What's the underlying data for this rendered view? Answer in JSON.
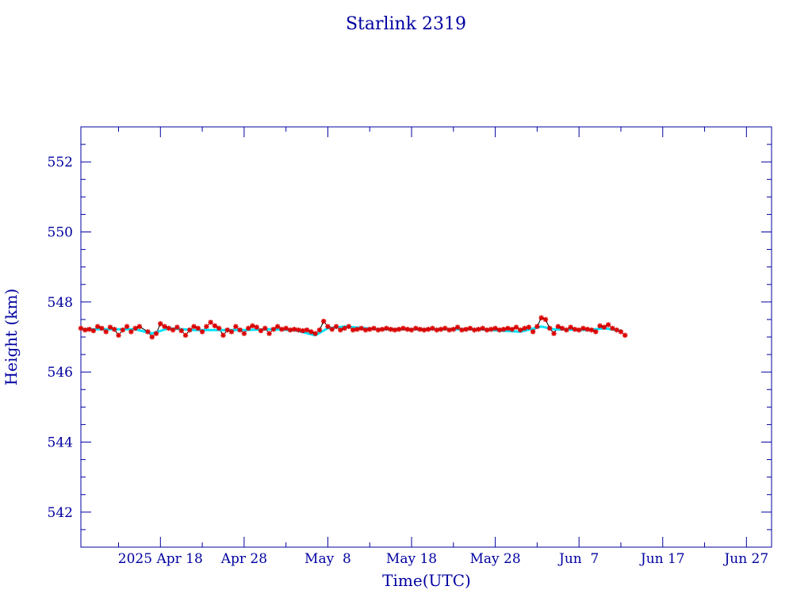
{
  "chart_data": {
    "type": "scatter",
    "title": "Starlink 2319",
    "xlabel": "Time(UTC)",
    "ylabel": "Height (km)",
    "xlim": [
      "2025-04-08T12:00",
      "2025-06-30T00:00"
    ],
    "ylim": [
      541,
      553
    ],
    "xticks": [
      {
        "label": "2025 Apr 18",
        "date": "2025-04-18"
      },
      {
        "label": "Apr 28",
        "date": "2025-04-28"
      },
      {
        "label": "May  8",
        "date": "2025-05-08"
      },
      {
        "label": "May 18",
        "date": "2025-05-18"
      },
      {
        "label": "May 28",
        "date": "2025-05-28"
      },
      {
        "label": "Jun  7",
        "date": "2025-06-07"
      },
      {
        "label": "Jun 17",
        "date": "2025-06-17"
      },
      {
        "label": "Jun 27",
        "date": "2025-06-27"
      }
    ],
    "yticks": [
      542,
      544,
      546,
      548,
      550,
      552
    ],
    "grid": false,
    "colors": {
      "axis": "#0000a0",
      "observed": "#dd0000",
      "smoothed": "#00e5ff",
      "connector": "#000000"
    },
    "series": [
      {
        "style": "red-star-markers",
        "points": [
          [
            "2025-04-08T12:00",
            547.25
          ],
          [
            "2025-04-09T00:00",
            547.2
          ],
          [
            "2025-04-09T12:00",
            547.22
          ],
          [
            "2025-04-10T00:00",
            547.18
          ],
          [
            "2025-04-10T12:00",
            547.3
          ],
          [
            "2025-04-11T00:00",
            547.25
          ],
          [
            "2025-04-11T12:00",
            547.15
          ],
          [
            "2025-04-12T00:00",
            547.28
          ],
          [
            "2025-04-12T12:00",
            547.22
          ],
          [
            "2025-04-13T00:00",
            547.05
          ],
          [
            "2025-04-13T12:00",
            547.2
          ],
          [
            "2025-04-14T00:00",
            547.3
          ],
          [
            "2025-04-14T12:00",
            547.15
          ],
          [
            "2025-04-15T00:00",
            547.25
          ],
          [
            "2025-04-15T12:00",
            547.3
          ],
          [
            "2025-04-16T12:00",
            547.15
          ],
          [
            "2025-04-17T00:00",
            547.0
          ],
          [
            "2025-04-17T12:00",
            547.1
          ],
          [
            "2025-04-18T00:00",
            547.38
          ],
          [
            "2025-04-18T12:00",
            547.3
          ],
          [
            "2025-04-19T00:00",
            547.25
          ],
          [
            "2025-04-19T12:00",
            547.2
          ],
          [
            "2025-04-20T00:00",
            547.28
          ],
          [
            "2025-04-20T12:00",
            547.18
          ],
          [
            "2025-04-21T00:00",
            547.05
          ],
          [
            "2025-04-21T12:00",
            547.2
          ],
          [
            "2025-04-22T00:00",
            547.3
          ],
          [
            "2025-04-22T12:00",
            547.25
          ],
          [
            "2025-04-23T00:00",
            547.15
          ],
          [
            "2025-04-23T12:00",
            547.3
          ],
          [
            "2025-04-24T00:00",
            547.42
          ],
          [
            "2025-04-24T12:00",
            547.32
          ],
          [
            "2025-04-25T00:00",
            547.25
          ],
          [
            "2025-04-25T12:00",
            547.05
          ],
          [
            "2025-04-26T00:00",
            547.2
          ],
          [
            "2025-04-26T12:00",
            547.15
          ],
          [
            "2025-04-27T00:00",
            547.3
          ],
          [
            "2025-04-27T12:00",
            547.2
          ],
          [
            "2025-04-28T00:00",
            547.1
          ],
          [
            "2025-04-28T12:00",
            547.25
          ],
          [
            "2025-04-29T00:00",
            547.32
          ],
          [
            "2025-04-29T12:00",
            547.28
          ],
          [
            "2025-04-30T00:00",
            547.18
          ],
          [
            "2025-04-30T12:00",
            547.25
          ],
          [
            "2025-05-01T00:00",
            547.1
          ],
          [
            "2025-05-01T12:00",
            547.22
          ],
          [
            "2025-05-02T00:00",
            547.3
          ],
          [
            "2025-05-02T12:00",
            547.22
          ],
          [
            "2025-05-03T00:00",
            547.25
          ],
          [
            "2025-05-03T12:00",
            547.2
          ],
          [
            "2025-05-04T00:00",
            547.22
          ],
          [
            "2025-05-04T12:00",
            547.2
          ],
          [
            "2025-05-05T00:00",
            547.18
          ],
          [
            "2025-05-05T12:00",
            547.2
          ],
          [
            "2025-05-06T00:00",
            547.15
          ],
          [
            "2025-05-06T12:00",
            547.1
          ],
          [
            "2025-05-07T00:00",
            547.2
          ],
          [
            "2025-05-07T12:00",
            547.45
          ],
          [
            "2025-05-08T00:00",
            547.3
          ],
          [
            "2025-05-08T12:00",
            547.22
          ],
          [
            "2025-05-09T00:00",
            547.3
          ],
          [
            "2025-05-09T12:00",
            547.2
          ],
          [
            "2025-05-10T00:00",
            547.25
          ],
          [
            "2025-05-10T12:00",
            547.3
          ],
          [
            "2025-05-11T00:00",
            547.2
          ],
          [
            "2025-05-11T12:00",
            547.22
          ],
          [
            "2025-05-12T00:00",
            547.25
          ],
          [
            "2025-05-12T12:00",
            547.2
          ],
          [
            "2025-05-13T00:00",
            547.22
          ],
          [
            "2025-05-13T12:00",
            547.25
          ],
          [
            "2025-05-14T00:00",
            547.2
          ],
          [
            "2025-05-14T12:00",
            547.22
          ],
          [
            "2025-05-15T00:00",
            547.25
          ],
          [
            "2025-05-15T12:00",
            547.22
          ],
          [
            "2025-05-16T00:00",
            547.2
          ],
          [
            "2025-05-16T12:00",
            547.22
          ],
          [
            "2025-05-17T00:00",
            547.25
          ],
          [
            "2025-05-17T12:00",
            547.22
          ],
          [
            "2025-05-18T00:00",
            547.2
          ],
          [
            "2025-05-18T12:00",
            547.25
          ],
          [
            "2025-05-19T00:00",
            547.22
          ],
          [
            "2025-05-19T12:00",
            547.2
          ],
          [
            "2025-05-20T00:00",
            547.22
          ],
          [
            "2025-05-20T12:00",
            547.25
          ],
          [
            "2025-05-21T00:00",
            547.2
          ],
          [
            "2025-05-21T12:00",
            547.22
          ],
          [
            "2025-05-22T00:00",
            547.25
          ],
          [
            "2025-05-22T12:00",
            547.2
          ],
          [
            "2025-05-23T00:00",
            547.22
          ],
          [
            "2025-05-23T12:00",
            547.28
          ],
          [
            "2025-05-24T00:00",
            547.2
          ],
          [
            "2025-05-24T12:00",
            547.22
          ],
          [
            "2025-05-25T00:00",
            547.25
          ],
          [
            "2025-05-25T12:00",
            547.2
          ],
          [
            "2025-05-26T00:00",
            547.22
          ],
          [
            "2025-05-26T12:00",
            547.25
          ],
          [
            "2025-05-27T00:00",
            547.2
          ],
          [
            "2025-05-27T12:00",
            547.22
          ],
          [
            "2025-05-28T00:00",
            547.25
          ],
          [
            "2025-05-28T12:00",
            547.2
          ],
          [
            "2025-05-29T00:00",
            547.22
          ],
          [
            "2025-05-29T12:00",
            547.25
          ],
          [
            "2025-05-30T00:00",
            547.22
          ],
          [
            "2025-05-30T12:00",
            547.28
          ],
          [
            "2025-05-31T00:00",
            547.2
          ],
          [
            "2025-05-31T12:00",
            547.25
          ],
          [
            "2025-06-01T00:00",
            547.28
          ],
          [
            "2025-06-01T12:00",
            547.15
          ],
          [
            "2025-06-02T00:00",
            547.3
          ],
          [
            "2025-06-02T12:00",
            547.55
          ],
          [
            "2025-06-03T00:00",
            547.5
          ],
          [
            "2025-06-03T12:00",
            547.25
          ],
          [
            "2025-06-04T00:00",
            547.1
          ],
          [
            "2025-06-04T12:00",
            547.3
          ],
          [
            "2025-06-05T00:00",
            547.25
          ],
          [
            "2025-06-05T12:00",
            547.2
          ],
          [
            "2025-06-06T00:00",
            547.28
          ],
          [
            "2025-06-06T12:00",
            547.22
          ],
          [
            "2025-06-07T00:00",
            547.2
          ],
          [
            "2025-06-07T12:00",
            547.25
          ],
          [
            "2025-06-08T00:00",
            547.22
          ],
          [
            "2025-06-08T12:00",
            547.2
          ],
          [
            "2025-06-09T00:00",
            547.15
          ],
          [
            "2025-06-09T12:00",
            547.32
          ],
          [
            "2025-06-10T00:00",
            547.28
          ],
          [
            "2025-06-10T12:00",
            547.35
          ],
          [
            "2025-06-11T00:00",
            547.25
          ],
          [
            "2025-06-11T12:00",
            547.2
          ],
          [
            "2025-06-12T00:00",
            547.15
          ],
          [
            "2025-06-12T12:00",
            547.05
          ]
        ]
      },
      {
        "style": "cyan-smoothed-line",
        "points": [
          [
            "2025-04-08T12:00",
            547.22
          ],
          [
            "2025-04-12T00:00",
            547.22
          ],
          [
            "2025-04-15T00:00",
            547.22
          ],
          [
            "2025-04-17T00:00",
            547.1
          ],
          [
            "2025-04-19T00:00",
            547.25
          ],
          [
            "2025-04-22T00:00",
            547.2
          ],
          [
            "2025-04-25T00:00",
            547.2
          ],
          [
            "2025-04-28T00:00",
            547.2
          ],
          [
            "2025-05-01T00:00",
            547.22
          ],
          [
            "2025-05-04T00:00",
            547.2
          ],
          [
            "2025-05-06T12:00",
            547.05
          ],
          [
            "2025-05-08T00:00",
            547.25
          ],
          [
            "2025-05-10T00:00",
            547.3
          ],
          [
            "2025-05-14T00:00",
            547.22
          ],
          [
            "2025-05-20T00:00",
            547.22
          ],
          [
            "2025-05-26T00:00",
            547.22
          ],
          [
            "2025-05-31T00:00",
            547.15
          ],
          [
            "2025-06-02T12:00",
            547.3
          ],
          [
            "2025-06-04T00:00",
            547.22
          ],
          [
            "2025-06-08T00:00",
            547.2
          ],
          [
            "2025-06-10T00:00",
            547.25
          ],
          [
            "2025-06-12T00:00",
            547.18
          ]
        ]
      }
    ]
  }
}
